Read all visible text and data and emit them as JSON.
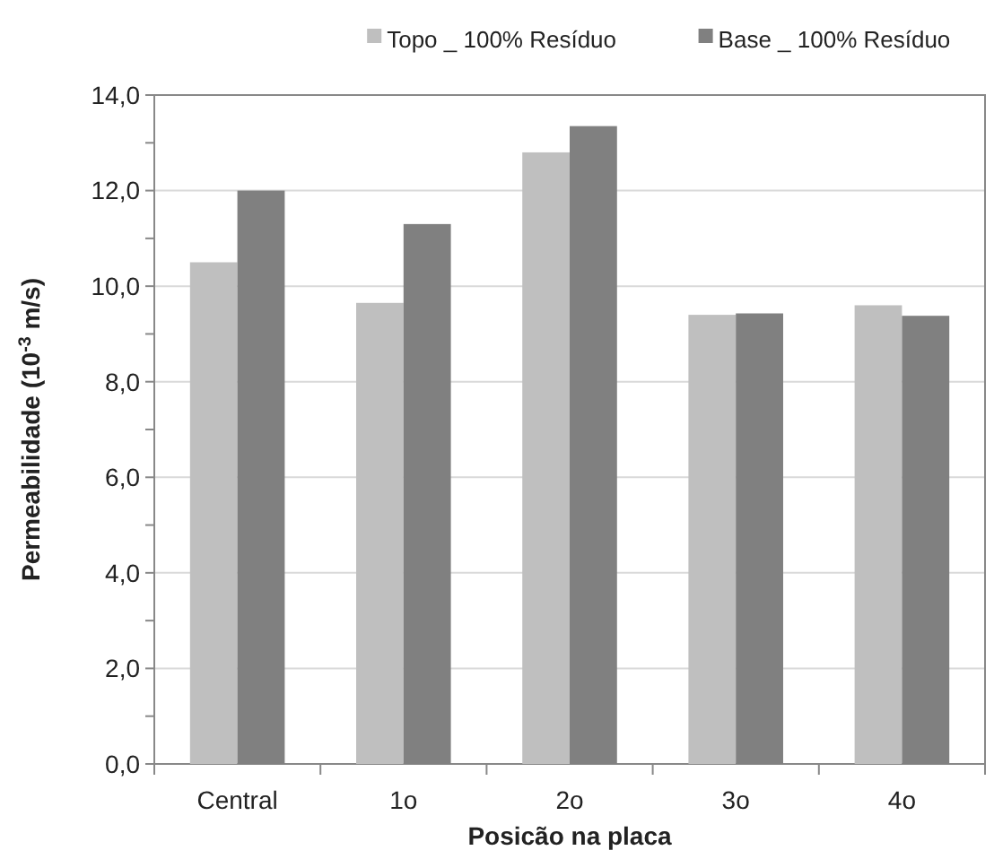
{
  "chart_data": {
    "type": "bar",
    "xlabel": "Posicão na placa",
    "ylabel": "Permeabilidade  (10$^{-3}$ m/s)",
    "categories": [
      "Central",
      "1o",
      "2o",
      "3o",
      "4o"
    ],
    "series": [
      {
        "name": "Topo _ 100% Resíduo",
        "color": "#bfbfbf",
        "values": [
          10.5,
          9.65,
          12.8,
          9.4,
          9.6
        ]
      },
      {
        "name": "Base _ 100% Resíduo",
        "color": "#808080",
        "values": [
          12.0,
          11.3,
          13.35,
          9.43,
          9.38
        ]
      }
    ],
    "ylim": [
      0,
      14
    ],
    "yticks": [
      {
        "value": 0,
        "label": "0,0"
      },
      {
        "value": 1,
        "label": null
      },
      {
        "value": 2,
        "label": "2,0"
      },
      {
        "value": 3,
        "label": null
      },
      {
        "value": 4,
        "label": "4,0"
      },
      {
        "value": 5,
        "label": null
      },
      {
        "value": 6,
        "label": "6,0"
      },
      {
        "value": 7,
        "label": null
      },
      {
        "value": 8,
        "label": "8,0"
      },
      {
        "value": 9,
        "label": null
      },
      {
        "value": 10,
        "label": "10,0"
      },
      {
        "value": 11,
        "label": null
      },
      {
        "value": 12,
        "label": "12,0"
      },
      {
        "value": 13,
        "label": null
      },
      {
        "value": 14,
        "label": "14,0"
      }
    ],
    "grid": "y",
    "legend": "top right"
  }
}
